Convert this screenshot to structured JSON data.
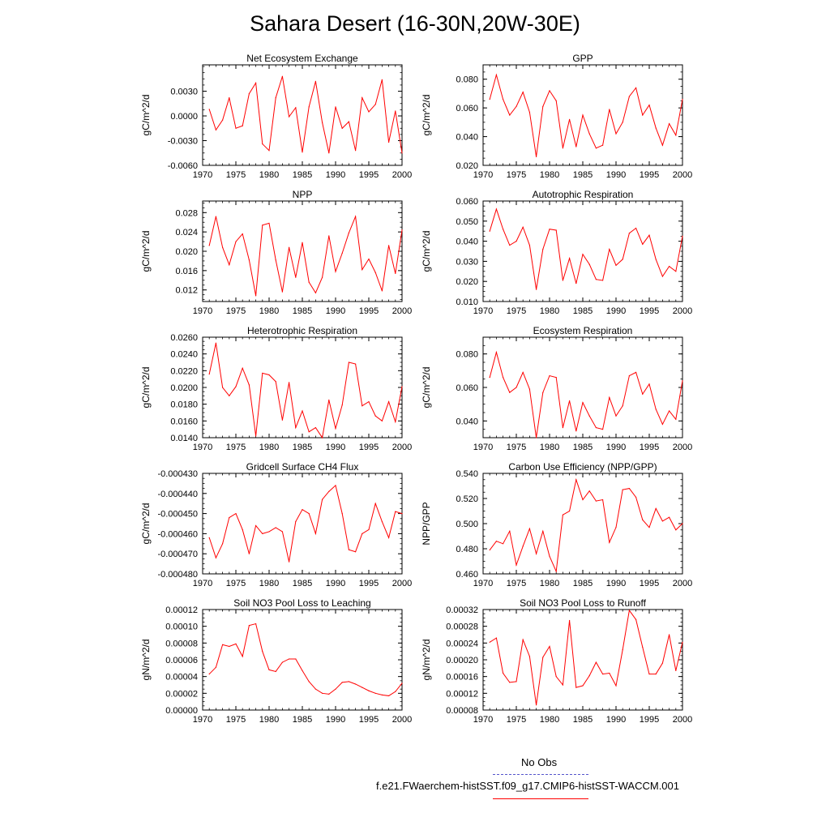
{
  "title": "Sahara Desert (16-30N,20W-30E)",
  "line_color": "#ff0000",
  "obs_color": "#5555cc",
  "legend": {
    "obs_label": "No Obs",
    "model_label": "f.e21.FWaerchem-histSST.f09_g17.CMIP6-histSST-WACCM.001"
  },
  "chart_data": [
    {
      "type": "line",
      "title": "Net Ecosystem Exchange",
      "ylabel": "gC/m^2/d",
      "xlim": [
        1970,
        2000
      ],
      "ylim": [
        -0.006,
        0.0062
      ],
      "xticks": [
        1970,
        1975,
        1980,
        1985,
        1990,
        1995,
        2000
      ],
      "xtick_labels": [
        "1970",
        "1975",
        "1980",
        "1985",
        "1990",
        "1995",
        "2000"
      ],
      "yticks": [
        -0.006,
        -0.003,
        0.0,
        0.003
      ],
      "ytick_labels": [
        "-0.0060",
        "-0.0030",
        "0.0000",
        "0.0030"
      ],
      "x": [
        1971,
        1972,
        1973,
        1974,
        1975,
        1976,
        1977,
        1978,
        1979,
        1980,
        1981,
        1982,
        1983,
        1984,
        1985,
        1986,
        1987,
        1988,
        1989,
        1990,
        1991,
        1992,
        1993,
        1994,
        1995,
        1996,
        1997,
        1998,
        1999,
        2000
      ],
      "values": [
        0.0008,
        -0.0017,
        -0.0005,
        0.0022,
        -0.0015,
        -0.0012,
        0.0027,
        0.004,
        -0.0034,
        -0.0042,
        0.0022,
        0.0048,
        -0.0001,
        0.001,
        -0.0044,
        0.0011,
        0.0042,
        -0.0008,
        -0.0045,
        0.0011,
        -0.0015,
        -0.0007,
        -0.0042,
        0.0022,
        0.0005,
        0.0014,
        0.0044,
        -0.0032,
        0.0006,
        -0.0045
      ]
    },
    {
      "type": "line",
      "title": "GPP",
      "ylabel": "gC/m^2/d",
      "xlim": [
        1970,
        2000
      ],
      "ylim": [
        0.02,
        0.09
      ],
      "xticks": [
        1970,
        1975,
        1980,
        1985,
        1990,
        1995,
        2000
      ],
      "xtick_labels": [
        "1970",
        "1975",
        "1980",
        "1985",
        "1990",
        "1995",
        "2000"
      ],
      "yticks": [
        0.02,
        0.04,
        0.06,
        0.08
      ],
      "ytick_labels": [
        "0.020",
        "0.040",
        "0.060",
        "0.080"
      ],
      "x": [
        1971,
        1972,
        1973,
        1974,
        1975,
        1976,
        1977,
        1978,
        1979,
        1980,
        1981,
        1982,
        1983,
        1984,
        1985,
        1986,
        1987,
        1988,
        1989,
        1990,
        1991,
        1992,
        1993,
        1994,
        1995,
        1996,
        1997,
        1998,
        1999,
        2000
      ],
      "values": [
        0.066,
        0.083,
        0.066,
        0.055,
        0.061,
        0.071,
        0.057,
        0.026,
        0.061,
        0.072,
        0.065,
        0.032,
        0.052,
        0.033,
        0.055,
        0.042,
        0.032,
        0.034,
        0.059,
        0.042,
        0.05,
        0.068,
        0.074,
        0.055,
        0.062,
        0.046,
        0.034,
        0.049,
        0.041,
        0.066
      ]
    },
    {
      "type": "line",
      "title": "NPP",
      "ylabel": "gC/m^2/d",
      "xlim": [
        1970,
        2000
      ],
      "ylim": [
        0.0096,
        0.0304
      ],
      "xticks": [
        1970,
        1975,
        1980,
        1985,
        1990,
        1995,
        2000
      ],
      "xtick_labels": [
        "1970",
        "1975",
        "1980",
        "1985",
        "1990",
        "1995",
        "2000"
      ],
      "yticks": [
        0.012,
        0.016,
        0.02,
        0.024,
        0.028
      ],
      "ytick_labels": [
        "0.012",
        "0.016",
        "0.020",
        "0.024",
        "0.028"
      ],
      "x": [
        1971,
        1972,
        1973,
        1974,
        1975,
        1976,
        1977,
        1978,
        1979,
        1980,
        1981,
        1982,
        1983,
        1984,
        1985,
        1986,
        1987,
        1988,
        1989,
        1990,
        1991,
        1992,
        1993,
        1994,
        1995,
        1996,
        1997,
        1998,
        1999,
        2000
      ],
      "values": [
        0.0212,
        0.0272,
        0.0208,
        0.0172,
        0.022,
        0.0236,
        0.0182,
        0.0108,
        0.0254,
        0.0258,
        0.0182,
        0.0116,
        0.0208,
        0.0146,
        0.0218,
        0.0136,
        0.0114,
        0.0146,
        0.0232,
        0.0158,
        0.0196,
        0.0238,
        0.0272,
        0.0162,
        0.0184,
        0.0156,
        0.0118,
        0.0212,
        0.0154,
        0.0244
      ]
    },
    {
      "type": "line",
      "title": "Autotrophic Respiration",
      "ylabel": "gC/m^2/d",
      "xlim": [
        1970,
        2000
      ],
      "ylim": [
        0.01,
        0.06
      ],
      "xticks": [
        1970,
        1975,
        1980,
        1985,
        1990,
        1995,
        2000
      ],
      "xtick_labels": [
        "1970",
        "1975",
        "1980",
        "1985",
        "1990",
        "1995",
        "2000"
      ],
      "yticks": [
        0.01,
        0.02,
        0.03,
        0.04,
        0.05,
        0.06
      ],
      "ytick_labels": [
        "0.010",
        "0.020",
        "0.030",
        "0.040",
        "0.050",
        "0.060"
      ],
      "x": [
        1971,
        1972,
        1973,
        1974,
        1975,
        1976,
        1977,
        1978,
        1979,
        1980,
        1981,
        1982,
        1983,
        1984,
        1985,
        1986,
        1987,
        1988,
        1989,
        1990,
        1991,
        1992,
        1993,
        1994,
        1995,
        1996,
        1997,
        1998,
        1999,
        2000
      ],
      "values": [
        0.045,
        0.056,
        0.046,
        0.038,
        0.04,
        0.047,
        0.038,
        0.016,
        0.036,
        0.046,
        0.0455,
        0.0205,
        0.0315,
        0.019,
        0.0335,
        0.0285,
        0.021,
        0.0205,
        0.036,
        0.028,
        0.031,
        0.044,
        0.0465,
        0.0385,
        0.043,
        0.031,
        0.0225,
        0.0275,
        0.025,
        0.0425
      ]
    },
    {
      "type": "line",
      "title": "Heterotrophic Respiration",
      "ylabel": "gC/m^2/d",
      "xlim": [
        1970,
        2000
      ],
      "ylim": [
        0.014,
        0.026
      ],
      "xticks": [
        1970,
        1975,
        1980,
        1985,
        1990,
        1995,
        2000
      ],
      "xtick_labels": [
        "1970",
        "1975",
        "1980",
        "1985",
        "1990",
        "1995",
        "2000"
      ],
      "yticks": [
        0.014,
        0.016,
        0.018,
        0.02,
        0.022,
        0.024,
        0.026
      ],
      "ytick_labels": [
        "0.0140",
        "0.0160",
        "0.0180",
        "0.0200",
        "0.0220",
        "0.0240",
        "0.0260"
      ],
      "x": [
        1971,
        1972,
        1973,
        1974,
        1975,
        1976,
        1977,
        1978,
        1979,
        1980,
        1981,
        1982,
        1983,
        1984,
        1985,
        1986,
        1987,
        1988,
        1989,
        1990,
        1991,
        1992,
        1993,
        1994,
        1995,
        1996,
        1997,
        1998,
        1999,
        2000
      ],
      "values": [
        0.0216,
        0.0253,
        0.02,
        0.019,
        0.0201,
        0.0223,
        0.0203,
        0.0142,
        0.0217,
        0.0215,
        0.0207,
        0.0161,
        0.0206,
        0.0152,
        0.0172,
        0.0147,
        0.0152,
        0.014,
        0.0185,
        0.0151,
        0.0179,
        0.023,
        0.0228,
        0.0178,
        0.0183,
        0.0166,
        0.016,
        0.0183,
        0.0159,
        0.0201
      ]
    },
    {
      "type": "line",
      "title": "Ecosystem Respiration",
      "ylabel": "gC/m^2/d",
      "xlim": [
        1970,
        2000
      ],
      "ylim": [
        0.03,
        0.09
      ],
      "xticks": [
        1970,
        1975,
        1980,
        1985,
        1990,
        1995,
        2000
      ],
      "xtick_labels": [
        "1970",
        "1975",
        "1980",
        "1985",
        "1990",
        "1995",
        "2000"
      ],
      "yticks": [
        0.04,
        0.06,
        0.08
      ],
      "ytick_labels": [
        "0.040",
        "0.060",
        "0.080"
      ],
      "x": [
        1971,
        1972,
        1973,
        1974,
        1975,
        1976,
        1977,
        1978,
        1979,
        1980,
        1981,
        1982,
        1983,
        1984,
        1985,
        1986,
        1987,
        1988,
        1989,
        1990,
        1991,
        1992,
        1993,
        1994,
        1995,
        1996,
        1997,
        1998,
        1999,
        2000
      ],
      "values": [
        0.066,
        0.081,
        0.066,
        0.057,
        0.06,
        0.069,
        0.059,
        0.03,
        0.057,
        0.067,
        0.066,
        0.036,
        0.052,
        0.034,
        0.051,
        0.043,
        0.036,
        0.035,
        0.054,
        0.043,
        0.049,
        0.067,
        0.069,
        0.056,
        0.062,
        0.047,
        0.038,
        0.046,
        0.041,
        0.064
      ]
    },
    {
      "type": "line",
      "title": "Gridcell Surface CH4 Flux",
      "ylabel": "gC/m^2/d",
      "xlim": [
        1970,
        2000
      ],
      "ylim": [
        -0.00048,
        -0.00043
      ],
      "xticks": [
        1970,
        1975,
        1980,
        1985,
        1990,
        1995,
        2000
      ],
      "xtick_labels": [
        "1970",
        "1975",
        "1980",
        "1985",
        "1990",
        "1995",
        "2000"
      ],
      "yticks": [
        -0.00048,
        -0.00047,
        -0.00046,
        -0.00045,
        -0.00044,
        -0.00043
      ],
      "ytick_labels": [
        "-0.000480",
        "-0.000470",
        "-0.000460",
        "-0.000450",
        "-0.000440",
        "-0.000430"
      ],
      "x": [
        1971,
        1972,
        1973,
        1974,
        1975,
        1976,
        1977,
        1978,
        1979,
        1980,
        1981,
        1982,
        1983,
        1984,
        1985,
        1986,
        1987,
        1988,
        1989,
        1990,
        1991,
        1992,
        1993,
        1994,
        1995,
        1996,
        1997,
        1998,
        1999,
        2000
      ],
      "values": [
        -0.000462,
        -0.000472,
        -0.000465,
        -0.000452,
        -0.00045,
        -0.000458,
        -0.00047,
        -0.000456,
        -0.00046,
        -0.000459,
        -0.000457,
        -0.000459,
        -0.000474,
        -0.000454,
        -0.000448,
        -0.00045,
        -0.00046,
        -0.000443,
        -0.000439,
        -0.000436,
        -0.00045,
        -0.000468,
        -0.000469,
        -0.00046,
        -0.000458,
        -0.000445,
        -0.000454,
        -0.000462,
        -0.000449,
        -0.00045
      ]
    },
    {
      "type": "line",
      "title": "Carbon Use Efficiency (NPP/GPP)",
      "ylabel": "NPP/GPP",
      "xlim": [
        1970,
        2000
      ],
      "ylim": [
        0.46,
        0.54
      ],
      "xticks": [
        1970,
        1975,
        1980,
        1985,
        1990,
        1995,
        2000
      ],
      "xtick_labels": [
        "1970",
        "1975",
        "1980",
        "1985",
        "1990",
        "1995",
        "2000"
      ],
      "yticks": [
        0.46,
        0.48,
        0.5,
        0.52,
        0.54
      ],
      "ytick_labels": [
        "0.460",
        "0.480",
        "0.500",
        "0.520",
        "0.540"
      ],
      "x": [
        1971,
        1972,
        1973,
        1974,
        1975,
        1976,
        1977,
        1978,
        1979,
        1980,
        1981,
        1982,
        1983,
        1984,
        1985,
        1986,
        1987,
        1988,
        1989,
        1990,
        1991,
        1992,
        1993,
        1994,
        1995,
        1996,
        1997,
        1998,
        1999,
        2000
      ],
      "values": [
        0.479,
        0.486,
        0.484,
        0.494,
        0.467,
        0.482,
        0.496,
        0.476,
        0.494,
        0.474,
        0.462,
        0.507,
        0.51,
        0.535,
        0.519,
        0.526,
        0.518,
        0.519,
        0.485,
        0.497,
        0.527,
        0.528,
        0.521,
        0.503,
        0.497,
        0.512,
        0.502,
        0.505,
        0.495,
        0.5
      ]
    },
    {
      "type": "line",
      "title": "Soil NO3 Pool Loss to Leaching",
      "ylabel": "gN/m^2/d",
      "xlim": [
        1970,
        2000
      ],
      "ylim": [
        0.0,
        0.00012
      ],
      "xticks": [
        1970,
        1975,
        1980,
        1985,
        1990,
        1995,
        2000
      ],
      "xtick_labels": [
        "1970",
        "1975",
        "1980",
        "1985",
        "1990",
        "1995",
        "2000"
      ],
      "yticks": [
        0.0,
        2e-05,
        4e-05,
        6e-05,
        8e-05,
        0.0001,
        0.00012
      ],
      "ytick_labels": [
        "0.00000",
        "0.00002",
        "0.00004",
        "0.00006",
        "0.00008",
        "0.00010",
        "0.00012"
      ],
      "x": [
        1971,
        1972,
        1973,
        1974,
        1975,
        1976,
        1977,
        1978,
        1979,
        1980,
        1981,
        1982,
        1983,
        1984,
        1985,
        1986,
        1987,
        1988,
        1989,
        1990,
        1991,
        1992,
        1993,
        1994,
        1995,
        1996,
        1997,
        1998,
        1999,
        2000
      ],
      "values": [
        4.3e-05,
        5.1e-05,
        7.8e-05,
        7.6e-05,
        7.9e-05,
        6.4e-05,
        0.000101,
        0.000103,
        7e-05,
        4.8e-05,
        4.6e-05,
        5.7e-05,
        6.1e-05,
        6.1e-05,
        4.7e-05,
        3.4e-05,
        2.5e-05,
        2e-05,
        1.9e-05,
        2.5e-05,
        3.3e-05,
        3.4e-05,
        3.1e-05,
        2.7e-05,
        2.3e-05,
        2e-05,
        1.8e-05,
        1.7e-05,
        2.2e-05,
        3.2e-05
      ]
    },
    {
      "type": "line",
      "title": "Soil NO3 Pool Loss to Runoff",
      "ylabel": "gN/m^2/d",
      "xlim": [
        1970,
        2000
      ],
      "ylim": [
        8e-05,
        0.00032
      ],
      "xticks": [
        1970,
        1975,
        1980,
        1985,
        1990,
        1995,
        2000
      ],
      "xtick_labels": [
        "1970",
        "1975",
        "1980",
        "1985",
        "1990",
        "1995",
        "2000"
      ],
      "yticks": [
        8e-05,
        0.00012,
        0.00016,
        0.0002,
        0.00024,
        0.00028,
        0.00032
      ],
      "ytick_labels": [
        "0.00008",
        "0.00012",
        "0.00016",
        "0.00020",
        "0.00024",
        "0.00028",
        "0.00032"
      ],
      "x": [
        1971,
        1972,
        1973,
        1974,
        1975,
        1976,
        1977,
        1978,
        1979,
        1980,
        1981,
        1982,
        1983,
        1984,
        1985,
        1986,
        1987,
        1988,
        1989,
        1990,
        1991,
        1992,
        1993,
        1994,
        1995,
        1996,
        1997,
        1998,
        1999,
        2000
      ],
      "values": [
        0.000242,
        0.000252,
        0.000168,
        0.000146,
        0.000148,
        0.000248,
        0.000208,
        9.2e-05,
        0.000206,
        0.000232,
        0.00016,
        0.00014,
        0.000294,
        0.000134,
        0.000138,
        0.000162,
        0.000194,
        0.000166,
        0.000168,
        0.000138,
        0.000224,
        0.000318,
        0.000296,
        0.00023,
        0.000166,
        0.000166,
        0.000192,
        0.00026,
        0.000174,
        0.000242
      ]
    }
  ]
}
